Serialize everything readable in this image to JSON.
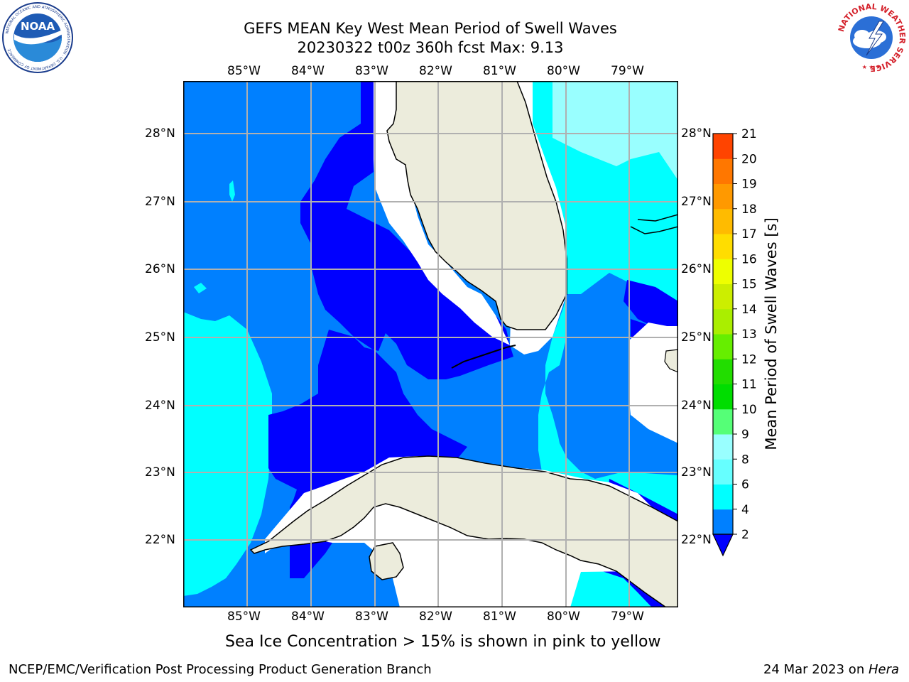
{
  "title": {
    "line1": "GEFS MEAN Key West Mean Period of Swell Waves",
    "line2": "20230322 t00z 360h fcst   Max: 9.13"
  },
  "map": {
    "lon_labels": [
      "85°W",
      "84°W",
      "83°W",
      "82°W",
      "81°W",
      "80°W",
      "79°W"
    ],
    "lat_labels": [
      "28°N",
      "27°N",
      "26°N",
      "25°N",
      "24°N",
      "23°N",
      "22°N"
    ],
    "extent": {
      "lon": [
        -86.0,
        -78.25
      ],
      "lat": [
        21.05,
        28.8
      ]
    },
    "colors": {
      "land": "#ececdc",
      "deep_blue": "#0000ff",
      "blue": "#0080ff",
      "cyan": "#00ffff",
      "light_cyan": "#99ffff",
      "grid": "#b0b0b0"
    }
  },
  "colorbar": {
    "label": "Mean Period of Swell Waves [s]",
    "ticks": [
      "2",
      "4",
      "6",
      "8",
      "9",
      "10",
      "11",
      "12",
      "13",
      "14",
      "15",
      "16",
      "17",
      "18",
      "19",
      "20",
      "21"
    ],
    "bands": [
      "#0080ff",
      "#00ffff",
      "#66ffff",
      "#99ffff",
      "#55ff77",
      "#00dd00",
      "#22dd00",
      "#66ee00",
      "#aaee00",
      "#ccee00",
      "#eeff00",
      "#ffdd00",
      "#ffbb00",
      "#ff9900",
      "#ff7700",
      "#ff4400",
      "#ff1100"
    ],
    "underflow_color": "#0000ff"
  },
  "note": "Sea Ice Concentration > 15% is shown in pink to yellow",
  "footer": {
    "left": "NCEP/EMC/Verification Post Processing Product Generation Branch",
    "date": "24 Mar 2023 on ",
    "machine": "Hera"
  },
  "logos": {
    "noaa": {
      "text": "NOAA",
      "ring": "NATIONAL OCEANIC AND ATMOSPHERIC ADMINISTRATION · U.S. DEPARTMENT OF COMMERCE"
    },
    "nws": {
      "ring": "NATIONAL WEATHER SERVICE"
    }
  }
}
